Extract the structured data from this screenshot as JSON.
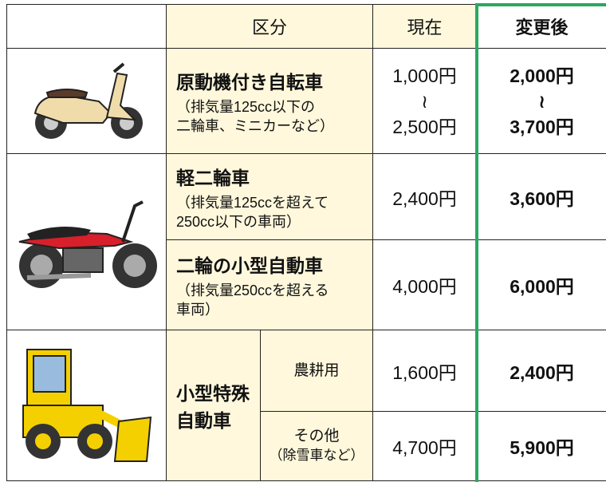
{
  "header": {
    "category": "区分",
    "current": "現在",
    "after": "変更後"
  },
  "rows": [
    {
      "name": "原動機付き自転車",
      "note": [
        "（排気量125cc以下の",
        "二輪車、ミニカーなど）"
      ],
      "current": [
        "1,000円",
        "≀",
        "2,500円"
      ],
      "after": [
        "2,000円",
        "≀",
        "3,700円"
      ]
    },
    {
      "name": "軽二輪車",
      "note": [
        "（排気量125ccを超えて",
        "250cc以下の車両）"
      ],
      "current": "2,400円",
      "after": "3,600円"
    },
    {
      "name": "二輪の小型自動車",
      "note": [
        "（排気量250ccを超える",
        "車両）"
      ],
      "current": "4,000円",
      "after": "6,000円"
    }
  ],
  "special": {
    "name": [
      "小型特殊",
      "自動車"
    ],
    "rows": [
      {
        "use": [
          "農耕用"
        ],
        "current": "1,600円",
        "after": "2,400円"
      },
      {
        "use": [
          "その他",
          "（除雪車など）"
        ],
        "current": "4,700円",
        "after": "5,900円"
      }
    ]
  }
}
